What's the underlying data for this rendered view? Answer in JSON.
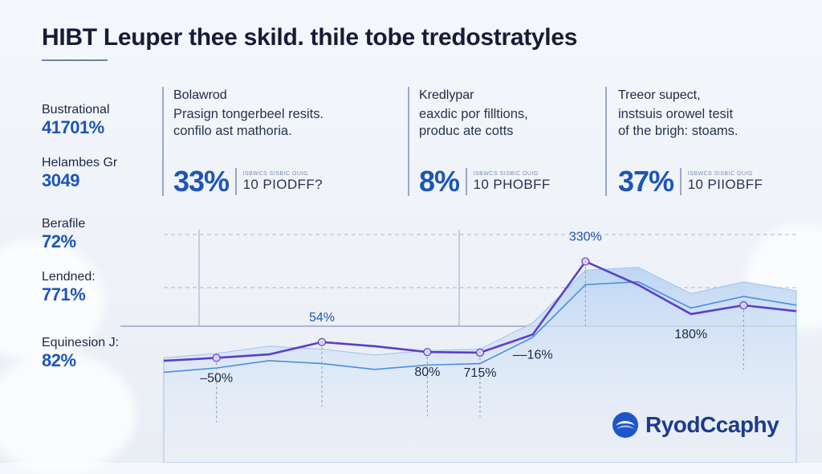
{
  "header": {
    "title": "HIBT Leuper thee skild. thile tobe tredostratyles"
  },
  "left_stats": [
    {
      "label": "Bustrational",
      "value": "41701%"
    },
    {
      "label": "Helambes Gr",
      "value": "3049"
    },
    {
      "label": "Berafile",
      "value": "72%"
    },
    {
      "label": "Lendned:",
      "value": "771%"
    },
    {
      "label": "Equinesion J:",
      "value": "82%"
    }
  ],
  "panels": [
    {
      "heading": "Bolawrod",
      "desc_lines": [
        "Prasign tongerbeel resits.",
        "confilo ast mathoria."
      ],
      "big": "33%",
      "tiny": "ISBWCS SISBIC OUIG",
      "small": "10 PIODFF?"
    },
    {
      "heading": "Kredlypar",
      "desc_lines": [
        "eaxdic por filltions,",
        "produc ate cotts"
      ],
      "big": "8%",
      "tiny": "ISBWCS SISBIC OUIG",
      "small": "10 PHOBFF"
    },
    {
      "heading": "Treeor supect,",
      "desc_lines": [
        "instsuis orowel tesit",
        "of the brigh: stoams."
      ],
      "big": "37%",
      "tiny": "ISBWCS SISBIC OUIG",
      "small": "10 PIIOBFF"
    }
  ],
  "chart_data": {
    "type": "line",
    "x": [
      0,
      1,
      2,
      3,
      4,
      5,
      6,
      7,
      8,
      9,
      10,
      11,
      12
    ],
    "series": [
      {
        "values": [
          -10,
          0,
          12,
          54,
          40,
          20,
          18,
          80,
          330,
          250,
          150,
          180,
          160
        ]
      }
    ],
    "area_values": [
      0,
      15,
      40,
      30,
      10,
      25,
      30,
      120,
      300,
      310,
      220,
      260,
      230
    ],
    "annotations": [
      {
        "text": "54%",
        "at": 3,
        "position": "above"
      },
      {
        "text": "330%",
        "at": 8,
        "position": "above"
      },
      {
        "text": "180%",
        "at": 10,
        "position": "below"
      },
      {
        "text": "–50%",
        "at": 1,
        "position": "below"
      },
      {
        "text": "715%",
        "at": 6,
        "position": "below"
      },
      {
        "text": "80%",
        "at": 5,
        "position": "below"
      },
      {
        "text": "––16%",
        "at": 7,
        "position": "below"
      }
    ],
    "grid": "dashed-horizontal",
    "ylim": [
      -150,
      400
    ]
  },
  "logo": {
    "text": "RyodCcaphy"
  },
  "colors": {
    "accent": "#1d55b8",
    "line": "#5a40c8",
    "line2": "#4a8ee0",
    "area": "#bcd5f3"
  }
}
